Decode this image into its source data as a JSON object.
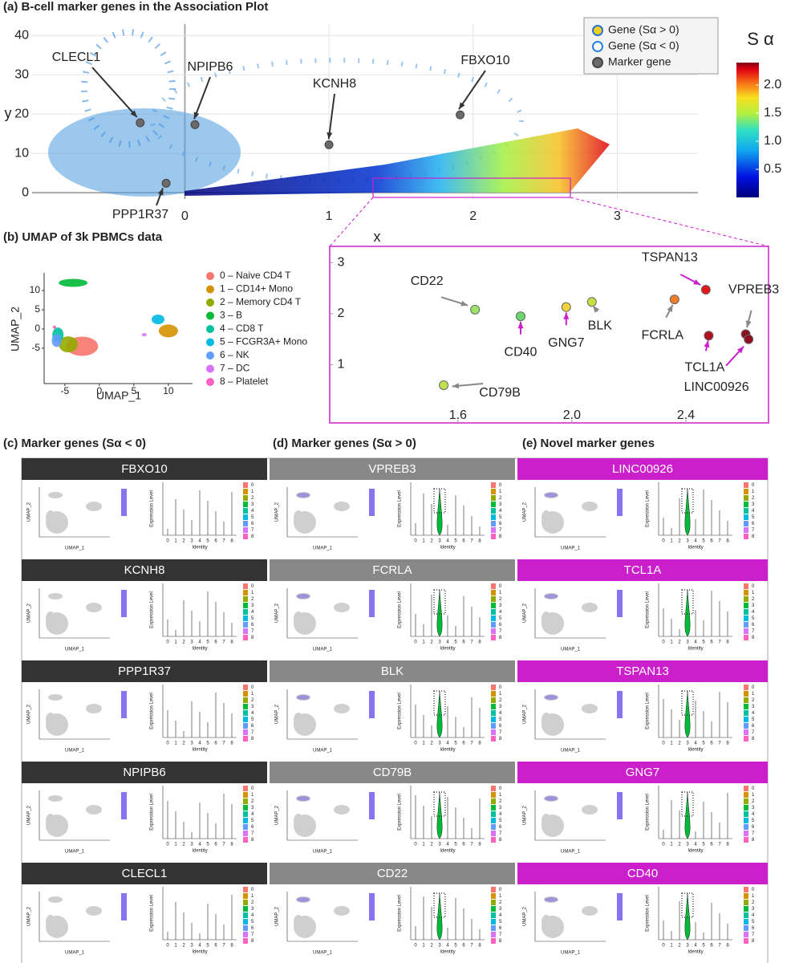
{
  "panel_a": {
    "type": "scatter",
    "title": "(a) B-cell marker genes in the Association Plot",
    "xlabel": "x",
    "ylabel": "y",
    "xlim": [
      -1.06,
      3.56
    ],
    "ylim": [
      -1.6,
      42.9
    ],
    "xticks": [
      0,
      1,
      2,
      3
    ],
    "yticks": [
      0,
      10,
      20,
      30,
      40
    ],
    "grid": true,
    "legend": [
      "Gene (Sα > 0)",
      "Gene (Sα < 0)",
      "Marker gene"
    ],
    "colorbar": {
      "title": "S α",
      "lim": [
        0,
        2.4
      ],
      "ticks": [
        0.5,
        {
          "value": 1,
          "label": "1.0"
        },
        1.5,
        {
          "value": 2,
          "label": "2.0"
        }
      ]
    },
    "markers": [
      {
        "name": "CLECL1",
        "x": -0.31,
        "y": 17.8
      },
      {
        "name": "NPIPB6",
        "x": 0.07,
        "y": 17.3
      },
      {
        "name": "KCNH8",
        "x": 1.0,
        "y": 12.2
      },
      {
        "name": "FBXO10",
        "x": 1.91,
        "y": 19.8
      },
      {
        "name": "PPP1R37",
        "x": -0.13,
        "y": 2.4
      }
    ]
  },
  "panel_zoom": {
    "type": "scatter",
    "xlim": [
      1.15,
      2.69
    ],
    "ylim": [
      -0.14,
      3.32
    ],
    "xticks": [
      1.6,
      {
        "value": 2,
        "label": "2.0"
      },
      2.4
    ],
    "yticks": [
      1,
      2,
      3
    ],
    "genes": [
      {
        "name": "CD22",
        "x": 1.66,
        "y": 2.08,
        "color": "#9be26a",
        "label_color": "#888888"
      },
      {
        "name": "CD40",
        "x": 1.82,
        "y": 1.95,
        "color": "#6ad86a",
        "label_color": "#cc1fcc"
      },
      {
        "name": "GNG7",
        "x": 1.98,
        "y": 2.13,
        "color": "#f0d23a",
        "label_color": "#cc1fcc"
      },
      {
        "name": "BLK",
        "x": 2.07,
        "y": 2.23,
        "color": "#c8e040",
        "label_color": "#888888"
      },
      {
        "name": "FCRLA",
        "x": 2.36,
        "y": 2.28,
        "color": "#f07c28",
        "label_color": "#888888"
      },
      {
        "name": "TSPAN13",
        "x": 2.47,
        "y": 2.47,
        "color": "#e01818",
        "label_color": "#cc1fcc"
      },
      {
        "name": "VPREB3",
        "x": 2.61,
        "y": 1.6,
        "color": "#8a1020",
        "label_color": "#888888"
      },
      {
        "name": "TCL1A",
        "x": 2.48,
        "y": 1.57,
        "color": "#b01020",
        "label_color": "#cc1fcc"
      },
      {
        "name": "LINC00926",
        "x": 2.62,
        "y": 1.5,
        "color": "#900c20",
        "label_color": "#cc1fcc"
      },
      {
        "name": "CD79B",
        "x": 1.55,
        "y": 0.6,
        "color": "#c0e050",
        "label_color": "#888888"
      }
    ]
  },
  "panel_b": {
    "type": "scatter",
    "title": "(b) UMAP of 3k PBMCs data",
    "xlabel": "UMAP_1",
    "ylabel": "UMAP_2",
    "xlim": [
      -8,
      13.5
    ],
    "ylim": [
      -14.2,
      14.6
    ],
    "xticks": [
      -5,
      0,
      5,
      10
    ],
    "yticks": [
      -5,
      0,
      5,
      10
    ],
    "clusters": [
      {
        "name": "0 – Naive CD4 T",
        "color": "#f8766d"
      },
      {
        "name": "1 – CD14+ Mono",
        "color": "#d39200"
      },
      {
        "name": "2 – Memory CD4 T",
        "color": "#93aa00"
      },
      {
        "name": "3 – B",
        "color": "#00ba38"
      },
      {
        "name": "4 – CD8 T",
        "color": "#00c19f"
      },
      {
        "name": "5 – FCGR3A+ Mono",
        "color": "#00b9e3"
      },
      {
        "name": "6 – NK",
        "color": "#619cff"
      },
      {
        "name": "7 – DC",
        "color": "#db72fb"
      },
      {
        "name": "8 – Platelet",
        "color": "#ff61c3"
      }
    ]
  },
  "panels_cde": {
    "columns": [
      {
        "title": "(c) Marker genes (Sα < 0)",
        "header_color": "#333333",
        "violin": false,
        "genes": [
          "FBXO10",
          "KCNH8",
          "PPP1R37",
          "NPIPB6",
          "CLECL1"
        ]
      },
      {
        "title": "(d) Marker genes (Sα > 0)",
        "header_color": "#888888",
        "violin": true,
        "genes": [
          "VPREB3",
          "FCRLA",
          "BLK",
          "CD79B",
          "CD22"
        ]
      },
      {
        "title": "(e) Novel marker genes",
        "header_color": "#cc1fcc",
        "violin": true,
        "genes": [
          "LINC00926",
          "TCL1A",
          "TSPAN13",
          "GNG7",
          "CD40"
        ]
      }
    ],
    "mini": {
      "umap_x": "UMAP_1",
      "umap_y": "UMAP_2",
      "violin_y": "Expression Level",
      "violin_x": "Identity",
      "identities": [
        "0",
        "1",
        "2",
        "3",
        "4",
        "5",
        "6",
        "7",
        "8"
      ]
    }
  }
}
